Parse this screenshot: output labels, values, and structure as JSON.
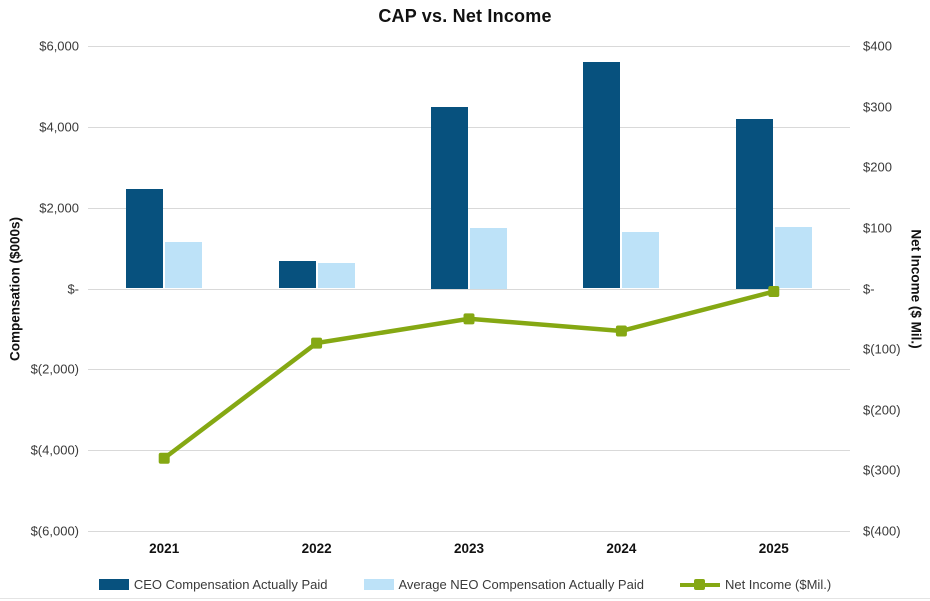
{
  "chart": {
    "title": "CAP vs. Net Income",
    "left_axis_title": "Compensation ($000s)",
    "right_axis_title": "Net Income ($ Mil.)",
    "legend": [
      "CEO Compensation Actually Paid",
      "Average NEO Compensation Actually Paid",
      "Net Income ($Mil.)"
    ]
  },
  "chart_data": {
    "type": "combo",
    "title": "CAP vs. Net Income",
    "categories": [
      "2021",
      "2022",
      "2023",
      "2024",
      "2025"
    ],
    "series": [
      {
        "name": "CEO Compensation Actually Paid",
        "type": "bar",
        "axis": "left",
        "color": "#07517E",
        "values": [
          2450,
          690,
          4500,
          5600,
          4200
        ]
      },
      {
        "name": "Average NEO Compensation Actually Paid",
        "type": "bar",
        "axis": "left",
        "color": "#BDE2F8",
        "values": [
          1150,
          625,
          1500,
          1390,
          1520
        ]
      },
      {
        "name": "Net Income ($Mil.)",
        "type": "line",
        "axis": "right",
        "color": "#85A813",
        "marker": "square",
        "values": [
          -280,
          -90,
          -50,
          -70,
          -5
        ]
      }
    ],
    "left_axis": {
      "title": "Compensation ($000s)",
      "min": -6000,
      "max": 6000,
      "tick_step": 2000,
      "tick_labels": [
        "$6,000",
        "$4,000",
        "$2,000",
        "$-",
        "$(2,000)",
        "$(4,000)",
        "$(6,000)"
      ]
    },
    "right_axis": {
      "title": "Net Income ($ Mil.)",
      "min": -400,
      "max": 400,
      "tick_step": 100,
      "tick_labels": [
        "$400",
        "$300",
        "$200",
        "$100",
        "$-",
        "$(100)",
        "$(200)",
        "$(300)",
        "$(400)"
      ]
    },
    "grid": true,
    "legend_position": "bottom",
    "colors": {
      "gridline": "#D9D9D9",
      "text": "#3a3a3a",
      "divider": "#E4E4E4"
    }
  }
}
